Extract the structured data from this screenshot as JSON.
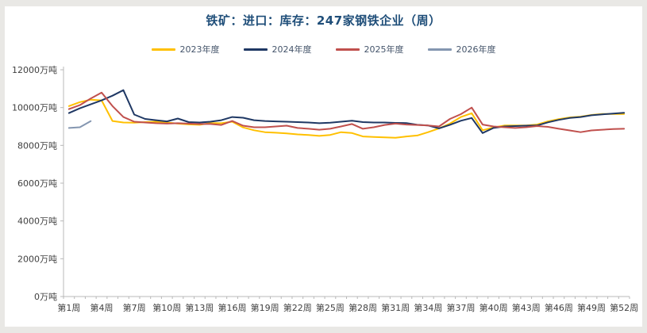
{
  "title": "铁矿：进口：库存：247家钢铁企业（周）",
  "legend": {
    "items": [
      {
        "label": "2023年度",
        "color": "#FFC000"
      },
      {
        "label": "2024年度",
        "color": "#1F3864"
      },
      {
        "label": "2025年度",
        "color": "#C0504D"
      },
      {
        "label": "2026年度",
        "color": "#8496B0"
      }
    ]
  },
  "chart_data": {
    "type": "line",
    "title": "铁矿：进口：库存：247家钢铁企业（周）",
    "unit": "万吨",
    "legend_position": "top",
    "grid": false,
    "x_count": 52,
    "ylim": [
      0,
      12000
    ],
    "y_ticks": [
      {
        "value": 0,
        "label": "0万吨"
      },
      {
        "value": 2000,
        "label": "2000万吨"
      },
      {
        "value": 4000,
        "label": "4000万吨"
      },
      {
        "value": 6000,
        "label": "6000万吨"
      },
      {
        "value": 8000,
        "label": "8000万吨"
      },
      {
        "value": 10000,
        "label": "10000万吨"
      },
      {
        "value": 12000,
        "label": "12000万吨"
      }
    ],
    "x_ticks": [
      {
        "week": 1,
        "label": "第1周"
      },
      {
        "week": 4,
        "label": "第4周"
      },
      {
        "week": 7,
        "label": "第7周"
      },
      {
        "week": 10,
        "label": "第10周"
      },
      {
        "week": 13,
        "label": "第13周"
      },
      {
        "week": 16,
        "label": "第16周"
      },
      {
        "week": 19,
        "label": "第19周"
      },
      {
        "week": 22,
        "label": "第22周"
      },
      {
        "week": 25,
        "label": "第25周"
      },
      {
        "week": 28,
        "label": "第28周"
      },
      {
        "week": 31,
        "label": "第31周"
      },
      {
        "week": 34,
        "label": "第34周"
      },
      {
        "week": 37,
        "label": "第37周"
      },
      {
        "week": 40,
        "label": "第40周"
      },
      {
        "week": 43,
        "label": "第43周"
      },
      {
        "week": 46,
        "label": "第46周"
      },
      {
        "week": 49,
        "label": "第49周"
      },
      {
        "week": 52,
        "label": "第52周"
      }
    ],
    "series": [
      {
        "name": "2023年度",
        "color": "#FFC000",
        "values": [
          10080,
          10290,
          10420,
          10380,
          9290,
          9210,
          9200,
          9230,
          9250,
          9210,
          9150,
          9110,
          9090,
          9180,
          9170,
          9250,
          8950,
          8800,
          8700,
          8670,
          8630,
          8580,
          8550,
          8500,
          8550,
          8700,
          8650,
          8470,
          8440,
          8420,
          8400,
          8470,
          8520,
          8700,
          8900,
          9150,
          9500,
          9700,
          8800,
          8950,
          9050,
          9050,
          9050,
          9100,
          9270,
          9390,
          9480,
          9520,
          9610,
          9660,
          9660,
          9660
        ]
      },
      {
        "name": "2024年度",
        "color": "#1F3864",
        "values": [
          9710,
          9960,
          10170,
          10380,
          10630,
          10920,
          9630,
          9400,
          9330,
          9270,
          9420,
          9230,
          9210,
          9250,
          9330,
          9500,
          9460,
          9330,
          9290,
          9270,
          9250,
          9230,
          9210,
          9170,
          9200,
          9250,
          9300,
          9230,
          9210,
          9210,
          9190,
          9180,
          9090,
          9050,
          8900,
          9090,
          9300,
          9450,
          8650,
          8920,
          9000,
          9020,
          9040,
          9050,
          9220,
          9350,
          9450,
          9500,
          9590,
          9640,
          9680,
          9720
        ]
      },
      {
        "name": "2025年度",
        "color": "#C0504D",
        "values": [
          9920,
          10130,
          10480,
          10790,
          10080,
          9500,
          9250,
          9210,
          9170,
          9150,
          9170,
          9150,
          9130,
          9130,
          9080,
          9290,
          9040,
          8960,
          8960,
          9000,
          9040,
          8920,
          8880,
          8830,
          8880,
          9000,
          9130,
          8880,
          8960,
          9080,
          9150,
          9100,
          9080,
          9050,
          9000,
          9400,
          9650,
          10000,
          9100,
          9000,
          8960,
          8920,
          8960,
          9020,
          8980,
          8880,
          8790,
          8700,
          8790,
          8830,
          8860,
          8880
        ]
      },
      {
        "name": "2026年度",
        "color": "#8496B0",
        "values": [
          8920,
          8960,
          9280
        ]
      }
    ]
  }
}
